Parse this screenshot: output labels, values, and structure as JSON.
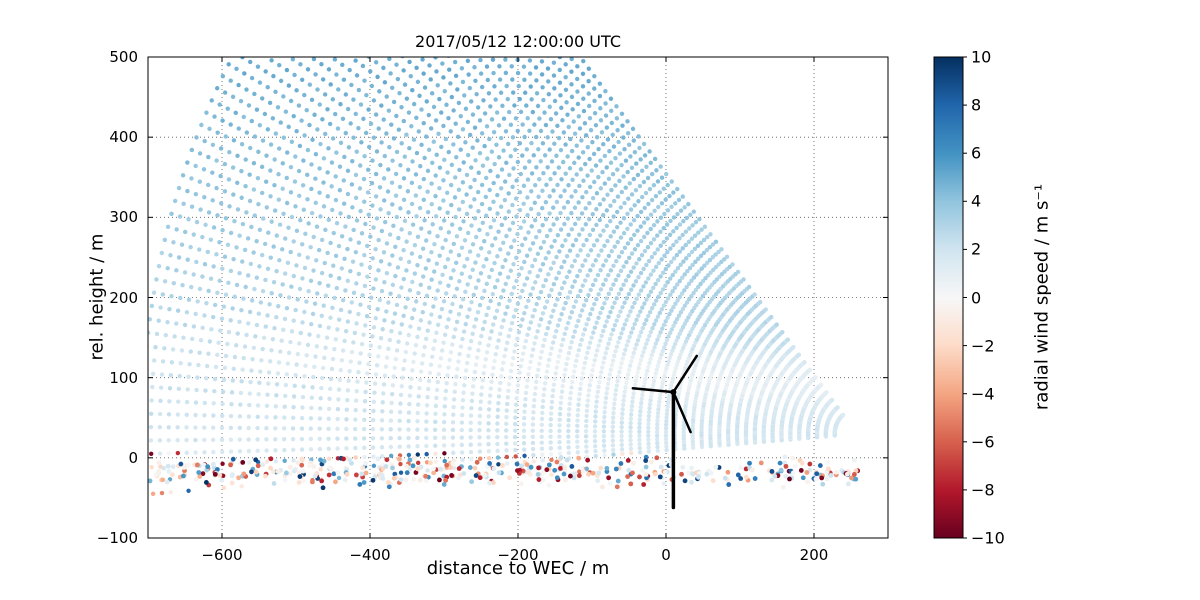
{
  "figure": {
    "title": "2017/05/12 12:00:00 UTC",
    "xlabel": "distance to WEC / m",
    "ylabel": "rel. height / m",
    "colorbar_label": "radial wind speed / m s⁻¹"
  },
  "chart_data": {
    "type": "scatter",
    "description": "Scanning doppler lidar RHI scan: radial wind speed on fan of beams converging at lidar right of wind turbine (WEC); ground-clutter noise band near height 0; wind turbine silhouette at x=0.",
    "title": "2017/05/12 12:00:00 UTC",
    "xlabel": "distance to WEC / m",
    "ylabel": "rel. height / m",
    "xlim": [
      -700,
      300
    ],
    "ylim": [
      -100,
      500
    ],
    "grid": {
      "on": true,
      "dash": [
        1,
        3
      ],
      "color": "rgba(0,0,0,0.65)",
      "linewidth": 0.8
    },
    "xticks": {
      "values": [
        -600,
        -400,
        -200,
        0,
        200
      ],
      "labels": [
        "−600",
        "−400",
        "−200",
        "0",
        "200"
      ]
    },
    "yticks": {
      "values": [
        -100,
        0,
        100,
        200,
        300,
        400,
        500
      ],
      "labels": [
        "−100",
        "0",
        "100",
        "200",
        "300",
        "400",
        "500"
      ]
    },
    "colorbar": {
      "label": "radial wind speed / m s⁻¹",
      "vmin": -10,
      "vmax": 10,
      "tick_values": [
        10,
        8,
        6,
        4,
        2,
        0,
        -2,
        -4,
        -6,
        -8,
        -10
      ],
      "tick_labels": [
        "10",
        "8",
        "6",
        "4",
        "2",
        "0",
        "−2",
        "−4",
        "−6",
        "−8",
        "−10"
      ]
    },
    "colormap": {
      "name": "RdBu",
      "stops_from_vmax_to_vmin": [
        "#053061",
        "#2166ac",
        "#4393c3",
        "#92c5de",
        "#d1e5f0",
        "#f7f7f7",
        "#fddbc7",
        "#f4a582",
        "#d6604d",
        "#b2182b",
        "#67001f"
      ]
    },
    "scan": {
      "origin_x": 258,
      "origin_h": 30,
      "elev_min_deg": -4.5,
      "elev_max_deg": 51.5,
      "n_beams": 57,
      "range_min": 30,
      "range_max": 975,
      "range_gate": 12,
      "marker_radius_px": 2.2
    },
    "wind_field": {
      "base": 1.7,
      "height_gain": 3.3,
      "height_ref": 500,
      "streak_center": 105,
      "streak_slope": -0.045,
      "streak_width": 27,
      "streak_depth": 1.6,
      "streak_x_center": -50,
      "streak_x_width": 350,
      "noise_amp": 0.35
    },
    "clutter": {
      "count": 420,
      "x_min": -700,
      "x_max": 260,
      "frac_left": 0.7,
      "h_mean": -18,
      "h_sd": 13,
      "h_min": -47,
      "h_max": 6,
      "strong_frac": 0.5,
      "strong_min": 3,
      "strong_max": 10,
      "weak_max": 2.5,
      "marker_radius_px": 2.4
    },
    "turbine": {
      "x": 10,
      "hub_h": 82,
      "tower_base_h": -62,
      "blade_len": 55,
      "blade_angles_deg": [
        55,
        175,
        295
      ],
      "color": "#000000",
      "tower_w": 3.5,
      "blade_w": 2.5,
      "hub_r": 3
    },
    "axes_color": "#000000",
    "background": "#ffffff"
  }
}
